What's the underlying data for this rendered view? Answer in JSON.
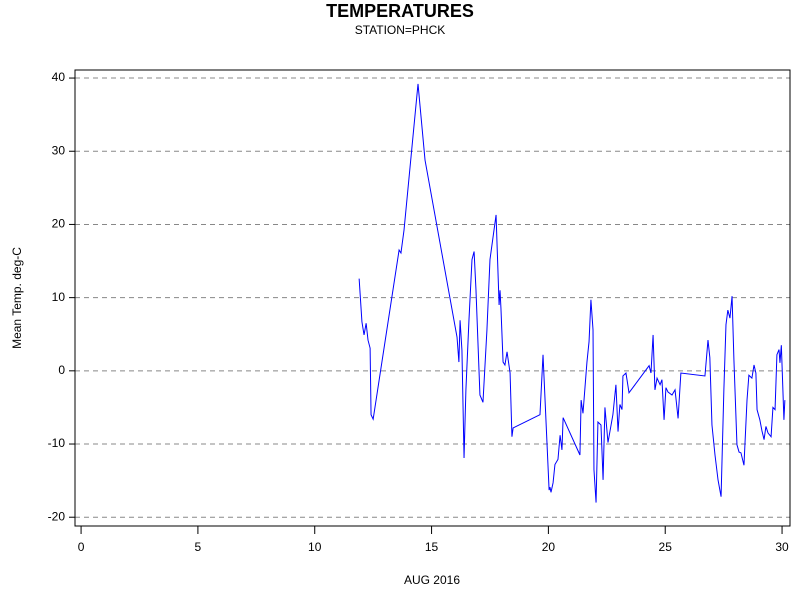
{
  "chart_data": {
    "type": "line",
    "title": "TEMPERATURES",
    "subtitle": "STATION=PHCK",
    "x_label": "AUG 2016",
    "y_label": "Mean Temp. deg-C",
    "xlim": [
      -0.26,
      30.34
    ],
    "xticks": [
      0,
      5,
      10,
      15,
      20,
      25,
      30
    ],
    "ylim": [
      -21.2,
      41.1
    ],
    "yticks": [
      -20,
      -10,
      0,
      10,
      20,
      30,
      40
    ],
    "grid": true,
    "series": [
      {
        "name": "Mean Temp.",
        "color": "#0000ff",
        "x": [
          11.9,
          12.02,
          12.11,
          12.2,
          12.28,
          12.37,
          12.41,
          12.5,
          13.61,
          13.69,
          13.82,
          14.42,
          14.72,
          16.09,
          16.17,
          16.22,
          16.3,
          16.39,
          16.47,
          16.6,
          16.73,
          16.82,
          16.9,
          17.07,
          17.2,
          17.37,
          17.5,
          17.76,
          17.89,
          17.93,
          17.97,
          18.06,
          18.14,
          18.23,
          18.36,
          18.44,
          18.49,
          19.64,
          19.77,
          20.03,
          20.07,
          20.11,
          20.2,
          20.28,
          20.41,
          20.5,
          20.58,
          20.63,
          21.35,
          21.4,
          21.48,
          21.65,
          21.74,
          21.82,
          21.91,
          21.95,
          22.04,
          22.12,
          22.25,
          22.34,
          22.42,
          22.55,
          22.76,
          22.89,
          22.98,
          23.06,
          23.15,
          23.19,
          23.32,
          23.45,
          24.31,
          24.39,
          24.48,
          24.56,
          24.65,
          24.78,
          24.86,
          24.95,
          25.03,
          25.12,
          25.29,
          25.42,
          25.55,
          25.67,
          26.7,
          26.83,
          26.91,
          27.0,
          27.13,
          27.26,
          27.39,
          27.51,
          27.6,
          27.68,
          27.77,
          27.86,
          27.94,
          28.07,
          28.16,
          28.24,
          28.37,
          28.5,
          28.58,
          28.71,
          28.8,
          28.88,
          28.93,
          29.05,
          29.14,
          29.23,
          29.31,
          29.4,
          29.53,
          29.61,
          29.7,
          29.78,
          29.87,
          29.91,
          29.97,
          30.08,
          30.12
        ],
        "values": [
          12.6,
          6.7,
          4.9,
          6.5,
          4.2,
          3.1,
          -6.0,
          -6.6,
          16.5,
          16.1,
          19.2,
          39.2,
          28.8,
          4.6,
          1.2,
          6.9,
          2.8,
          -11.9,
          -2.6,
          6.9,
          15.2,
          16.3,
          11.1,
          -3.3,
          -4.3,
          5.6,
          15.2,
          21.3,
          9.0,
          11.0,
          8.5,
          1.2,
          0.8,
          2.6,
          -0.3,
          -9.0,
          -7.8,
          -6.0,
          2.2,
          -16.3,
          -15.9,
          -16.6,
          -15.3,
          -12.8,
          -12.1,
          -8.8,
          -10.8,
          -6.4,
          -11.5,
          -4.0,
          -5.8,
          1.2,
          4.0,
          9.7,
          5.6,
          -13.5,
          -18.0,
          -7.0,
          -7.4,
          -14.9,
          -5.0,
          -9.8,
          -6.0,
          -1.9,
          -8.3,
          -4.6,
          -5.3,
          -0.7,
          -0.3,
          -3.0,
          0.7,
          -0.3,
          4.9,
          -2.6,
          -1.0,
          -1.9,
          -1.2,
          -6.7,
          -2.3,
          -2.9,
          -3.3,
          -2.6,
          -6.5,
          -0.3,
          -0.7,
          4.2,
          1.8,
          -7.4,
          -11.5,
          -14.9,
          -17.2,
          -2.6,
          6.3,
          8.3,
          7.2,
          10.2,
          1.5,
          -10.1,
          -11.1,
          -11.2,
          -12.9,
          -4.0,
          -0.6,
          -1.0,
          0.8,
          -0.3,
          -5.3,
          -6.7,
          -8.2,
          -9.4,
          -7.6,
          -8.5,
          -9.0,
          -5.0,
          -5.3,
          2.2,
          2.9,
          1.1,
          3.5,
          -6.7,
          -4.0
        ]
      }
    ]
  }
}
